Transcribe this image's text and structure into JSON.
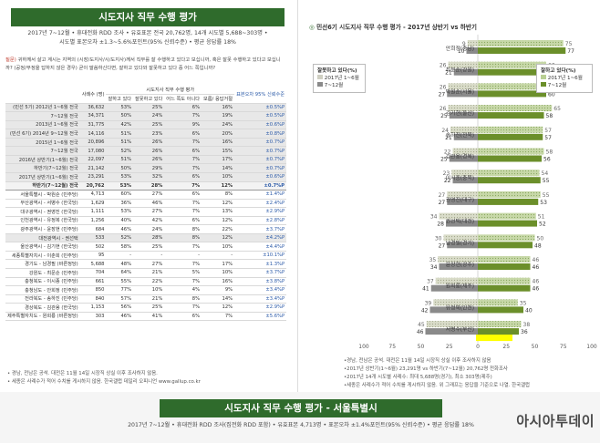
{
  "left": {
    "title": "시도지사 직무 수행 평가",
    "subtitle_lines": [
      "2017년 7~12월 • 휴대전화 RDD 조사 • 유효표본 전국 20,762명, 14개 시도별 5,688~303명 •",
      "시도별 표본오차 ±1.3~5.6%포인트(95% 신뢰수준) • 평균 응답률 18%"
    ],
    "question_label": "질문)",
    "question": "귀하께서 살고 계시는 지역의 (시장/도지사/시/도지사)께서 직무를 잘 수행하고 있다고 보십니까, 혹은 잘못 수행하고 있다고 보십니까? (공정/부정을 답하지 않은 경우) 굳이 말씀하신다면, 잘하고 있다와 잘못하고 있다 중 어느 쪽입니까?",
    "table": {
      "col_headers": [
        "사례수 (명)",
        "잘하고 있다",
        "잘못하고 있다",
        "어느 쪽도 아니다",
        "모름/ 응답거절",
        "표본오차 95% 신뢰수준"
      ],
      "group_header": "시도지사 직무 수행 평가",
      "rows": [
        {
          "label": "(민선 5기) 2012년 1~6월 전국",
          "n": "36,632",
          "a": "53%",
          "b": "25%",
          "c": "6%",
          "d": "16%",
          "e": "±0.5%P",
          "type": "g"
        },
        {
          "label": "7~12월 전국",
          "n": "34,371",
          "a": "50%",
          "b": "24%",
          "c": "7%",
          "d": "19%",
          "e": "±0.5%P",
          "type": "g"
        },
        {
          "label": "2013년 1~6월 전국",
          "n": "31,775",
          "a": "42%",
          "b": "25%",
          "c": "9%",
          "d": "24%",
          "e": "±0.6%P",
          "type": "g"
        },
        {
          "label": "(민선 6기) 2014년 9~12월 전국",
          "n": "14,116",
          "a": "51%",
          "b": "23%",
          "c": "6%",
          "d": "20%",
          "e": "±0.8%P",
          "type": "g"
        },
        {
          "label": "2015년 1~6월 전국",
          "n": "20,896",
          "a": "51%",
          "b": "26%",
          "c": "7%",
          "d": "16%",
          "e": "±0.7%P",
          "type": "g"
        },
        {
          "label": "7~12월 전국",
          "n": "17,080",
          "a": "52%",
          "b": "26%",
          "c": "6%",
          "d": "15%",
          "e": "±0.7%P",
          "type": "g"
        },
        {
          "label": "2016년 상반기(1~6월) 전국",
          "n": "22,097",
          "a": "51%",
          "b": "26%",
          "c": "7%",
          "d": "17%",
          "e": "±0.7%P",
          "type": "g"
        },
        {
          "label": "하반기(7~12월) 전국",
          "n": "21,142",
          "a": "50%",
          "b": "29%",
          "c": "7%",
          "d": "14%",
          "e": "±0.7%P",
          "type": "g"
        },
        {
          "label": "2017년 상반기(1~6월) 전국",
          "n": "23,291",
          "a": "53%",
          "b": "32%",
          "c": "6%",
          "d": "10%",
          "e": "±0.6%P",
          "type": "g"
        },
        {
          "label": "하반기(7~12월) 전국",
          "n": "20,762",
          "a": "53%",
          "b": "28%",
          "c": "7%",
          "d": "12%",
          "e": "±0.7%P",
          "type": "tot"
        },
        {
          "label": "서울특별시 - 박원순 (민주당)",
          "n": "4,713",
          "a": "60%",
          "b": "27%",
          "c": "6%",
          "d": "8%",
          "e": "±1.4%P",
          "type": ""
        },
        {
          "label": "부산광역시 - 서병수 (한국당)",
          "n": "1,629",
          "a": "36%",
          "b": "46%",
          "c": "7%",
          "d": "12%",
          "e": "±2.4%P",
          "type": ""
        },
        {
          "label": "대구광역시 - 권영진 (한국당)",
          "n": "1,111",
          "a": "53%",
          "b": "27%",
          "c": "7%",
          "d": "13%",
          "e": "±2.9%P",
          "type": ""
        },
        {
          "label": "인천광역시 - 유정복 (한국당)",
          "n": "1,256",
          "a": "40%",
          "b": "42%",
          "c": "6%",
          "d": "12%",
          "e": "±2.8%P",
          "type": ""
        },
        {
          "label": "광주광역시 - 윤장현 (민주당)",
          "n": "684",
          "a": "46%",
          "b": "24%",
          "c": "8%",
          "d": "22%",
          "e": "±3.7%P",
          "type": ""
        },
        {
          "label": "대전광역시 - 권선택",
          "n": "533",
          "a": "52%",
          "b": "28%",
          "c": "8%",
          "d": "12%",
          "e": "±4.2%P",
          "type": "g"
        },
        {
          "label": "울산광역시 - 김기현 (한국당)",
          "n": "502",
          "a": "58%",
          "b": "25%",
          "c": "7%",
          "d": "10%",
          "e": "±4.4%P",
          "type": ""
        },
        {
          "label": "세종특별자치시 - 이춘희 (민주당)",
          "n": "95",
          "a": "-",
          "b": "-",
          "c": "-",
          "d": "-",
          "e": "±10.1%P",
          "type": ""
        },
        {
          "label": "경기도 - 남경필 (바른정당)",
          "n": "5,688",
          "a": "48%",
          "b": "27%",
          "c": "7%",
          "d": "17%",
          "e": "±1.3%P",
          "type": ""
        },
        {
          "label": "강원도 - 최문순 (민주당)",
          "n": "704",
          "a": "64%",
          "b": "21%",
          "c": "5%",
          "d": "10%",
          "e": "±3.7%P",
          "type": ""
        },
        {
          "label": "충청북도 - 이시종 (민주당)",
          "n": "661",
          "a": "55%",
          "b": "22%",
          "c": "7%",
          "d": "16%",
          "e": "±3.8%P",
          "type": ""
        },
        {
          "label": "충청남도 - 안희정 (민주당)",
          "n": "850",
          "a": "77%",
          "b": "10%",
          "c": "4%",
          "d": "9%",
          "e": "±3.4%P",
          "type": ""
        },
        {
          "label": "전라북도 - 송하진 (민주당)",
          "n": "840",
          "a": "57%",
          "b": "21%",
          "c": "8%",
          "d": "14%",
          "e": "±3.4%P",
          "type": ""
        },
        {
          "label": "경상북도 - 김관용 (한국당)",
          "n": "1,153",
          "a": "56%",
          "b": "25%",
          "c": "7%",
          "d": "12%",
          "e": "±2.9%P",
          "type": ""
        },
        {
          "label": "제주특별자치도 - 원희룡 (바른정당)",
          "n": "303",
          "a": "46%",
          "b": "41%",
          "c": "6%",
          "d": "7%",
          "e": "±5.6%P",
          "type": ""
        }
      ]
    },
    "footnotes": [
      "• 경남, 전남은 공석. 대전은 11월 14일 시장직 상실 이후 조사하지 않음.",
      "• 세종은 사례수가 적어 수치를 게시하지 않음. 한국갤럽 데일리 오피니언 www.gallup.co.kr"
    ]
  },
  "chart_data": {
    "type": "bar",
    "title": "민선6기 시도지사 직무 수행 평가 - 2017년 상반기 vs 하반기",
    "categories": [
      "안희정(충남)",
      "최문순(강원)",
      "박원순(서울)",
      "김기현(울산)",
      "송하진(전북)",
      "김관용(경북)",
      "이시종(충북)",
      "권영진(대구)",
      "권선택(대전)",
      "남경필(경기)",
      "윤장현(광주)",
      "원희룡(제주)",
      "유정복(인천)",
      "서병수(부산)"
    ],
    "series": [
      {
        "name": "잘하고 있다(%) 2017년 1~6월",
        "side": "right",
        "values": [
          75,
          60,
          59,
          65,
          57,
          58,
          54,
          55,
          51,
          50,
          46,
          46,
          35,
          38
        ]
      },
      {
        "name": "잘하고 있다(%) 7~12월",
        "side": "right",
        "values": [
          77,
          64,
          60,
          58,
          57,
          56,
          55,
          53,
          52,
          48,
          46,
          46,
          40,
          36
        ]
      },
      {
        "name": "잘못하고 있다(%) 2017년 1~6월",
        "side": "left",
        "values": [
          9,
          26,
          26,
          26,
          24,
          22,
          23,
          27,
          34,
          30,
          35,
          37,
          39,
          45
        ]
      },
      {
        "name": "잘못하고 있다(%) 7~12월",
        "side": "left",
        "values": [
          10,
          21,
          27,
          25,
          21,
          25,
          22,
          27,
          28,
          27,
          34,
          41,
          42,
          46
        ]
      }
    ],
    "x_ticks": [
      "100",
      "75",
      "50",
      "25",
      "0",
      "25",
      "50",
      "75",
      "100"
    ],
    "legend_left": {
      "title": "잘못하고 있다(%)",
      "items": [
        "2017년 1~6월",
        "7~12월"
      ]
    },
    "legend_right": {
      "title": "잘하고 있다(%)",
      "items": [
        "2017년 1~6월",
        "7~12월"
      ]
    },
    "highlight_category": "서병수(부산)",
    "notes": [
      "•경남, 전남은 공석. 대전은 11월 14일 시장직 상실 이후 조사하지 않음",
      "•2017년 상반기(1~6월) 23,291명 vs 하반기(7~12월) 20,762명 전화조사",
      "•2017년 14개 시도별 사례수: 최대 5,688명(경기), 최소 303명(제주)",
      "•세종은 사례수가 적어 수치를 게시하지 않음. 위 그래프는 응답을 기준으로 나열. 한국갤럽"
    ]
  },
  "bottom": {
    "title": "시도지사 직무 수행 평가 - 서울특별시",
    "subtitle": "2017년 7~12월 • 휴대전화 RDD 조사(집전화 RDD 포함) • 유효표본 4,713명 • 표본오차 ±1.4%포인트(95% 신뢰수준) • 평균 응답률 18%",
    "watermark": "아시아투데이"
  },
  "colors": {
    "green": "#2f6b2c",
    "bar_dark": "#6b8f2a",
    "bar_light": "#b9cf94",
    "neg_dark": "#8a8a8a",
    "neg_light": "#cfcfc2",
    "highlight": "#ffff00"
  }
}
